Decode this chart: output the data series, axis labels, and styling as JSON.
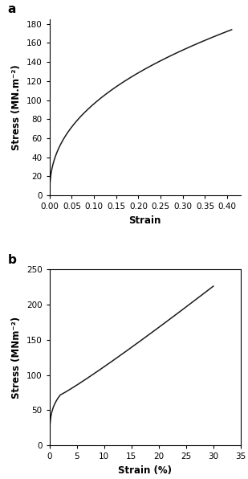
{
  "plot_a": {
    "label": "a",
    "xlabel": "Strain",
    "ylabel": "Stress (MN.m⁻²)",
    "xlim": [
      0.0,
      0.43
    ],
    "ylim": [
      0,
      185
    ],
    "xticks": [
      0.0,
      0.05,
      0.1,
      0.15,
      0.2,
      0.25,
      0.3,
      0.35,
      0.4
    ],
    "yticks": [
      0,
      20,
      40,
      60,
      80,
      100,
      120,
      140,
      160,
      180
    ],
    "line_color": "#1a1a1a",
    "a_coeff": 390.0,
    "b_exp": 0.55
  },
  "plot_b": {
    "label": "b",
    "xlabel": "Strain (%)",
    "ylabel": "Stress (MNm⁻²)",
    "xlim": [
      0,
      35
    ],
    "ylim": [
      0,
      250
    ],
    "xticks": [
      0,
      5,
      10,
      15,
      20,
      25,
      30,
      35
    ],
    "yticks": [
      0,
      50,
      100,
      150,
      200,
      250
    ],
    "line_color": "#1a1a1a"
  },
  "background_color": "#ffffff",
  "label_fontsize": 8.5,
  "tick_fontsize": 7.5,
  "panel_label_fontsize": 11,
  "line_width": 1.1
}
